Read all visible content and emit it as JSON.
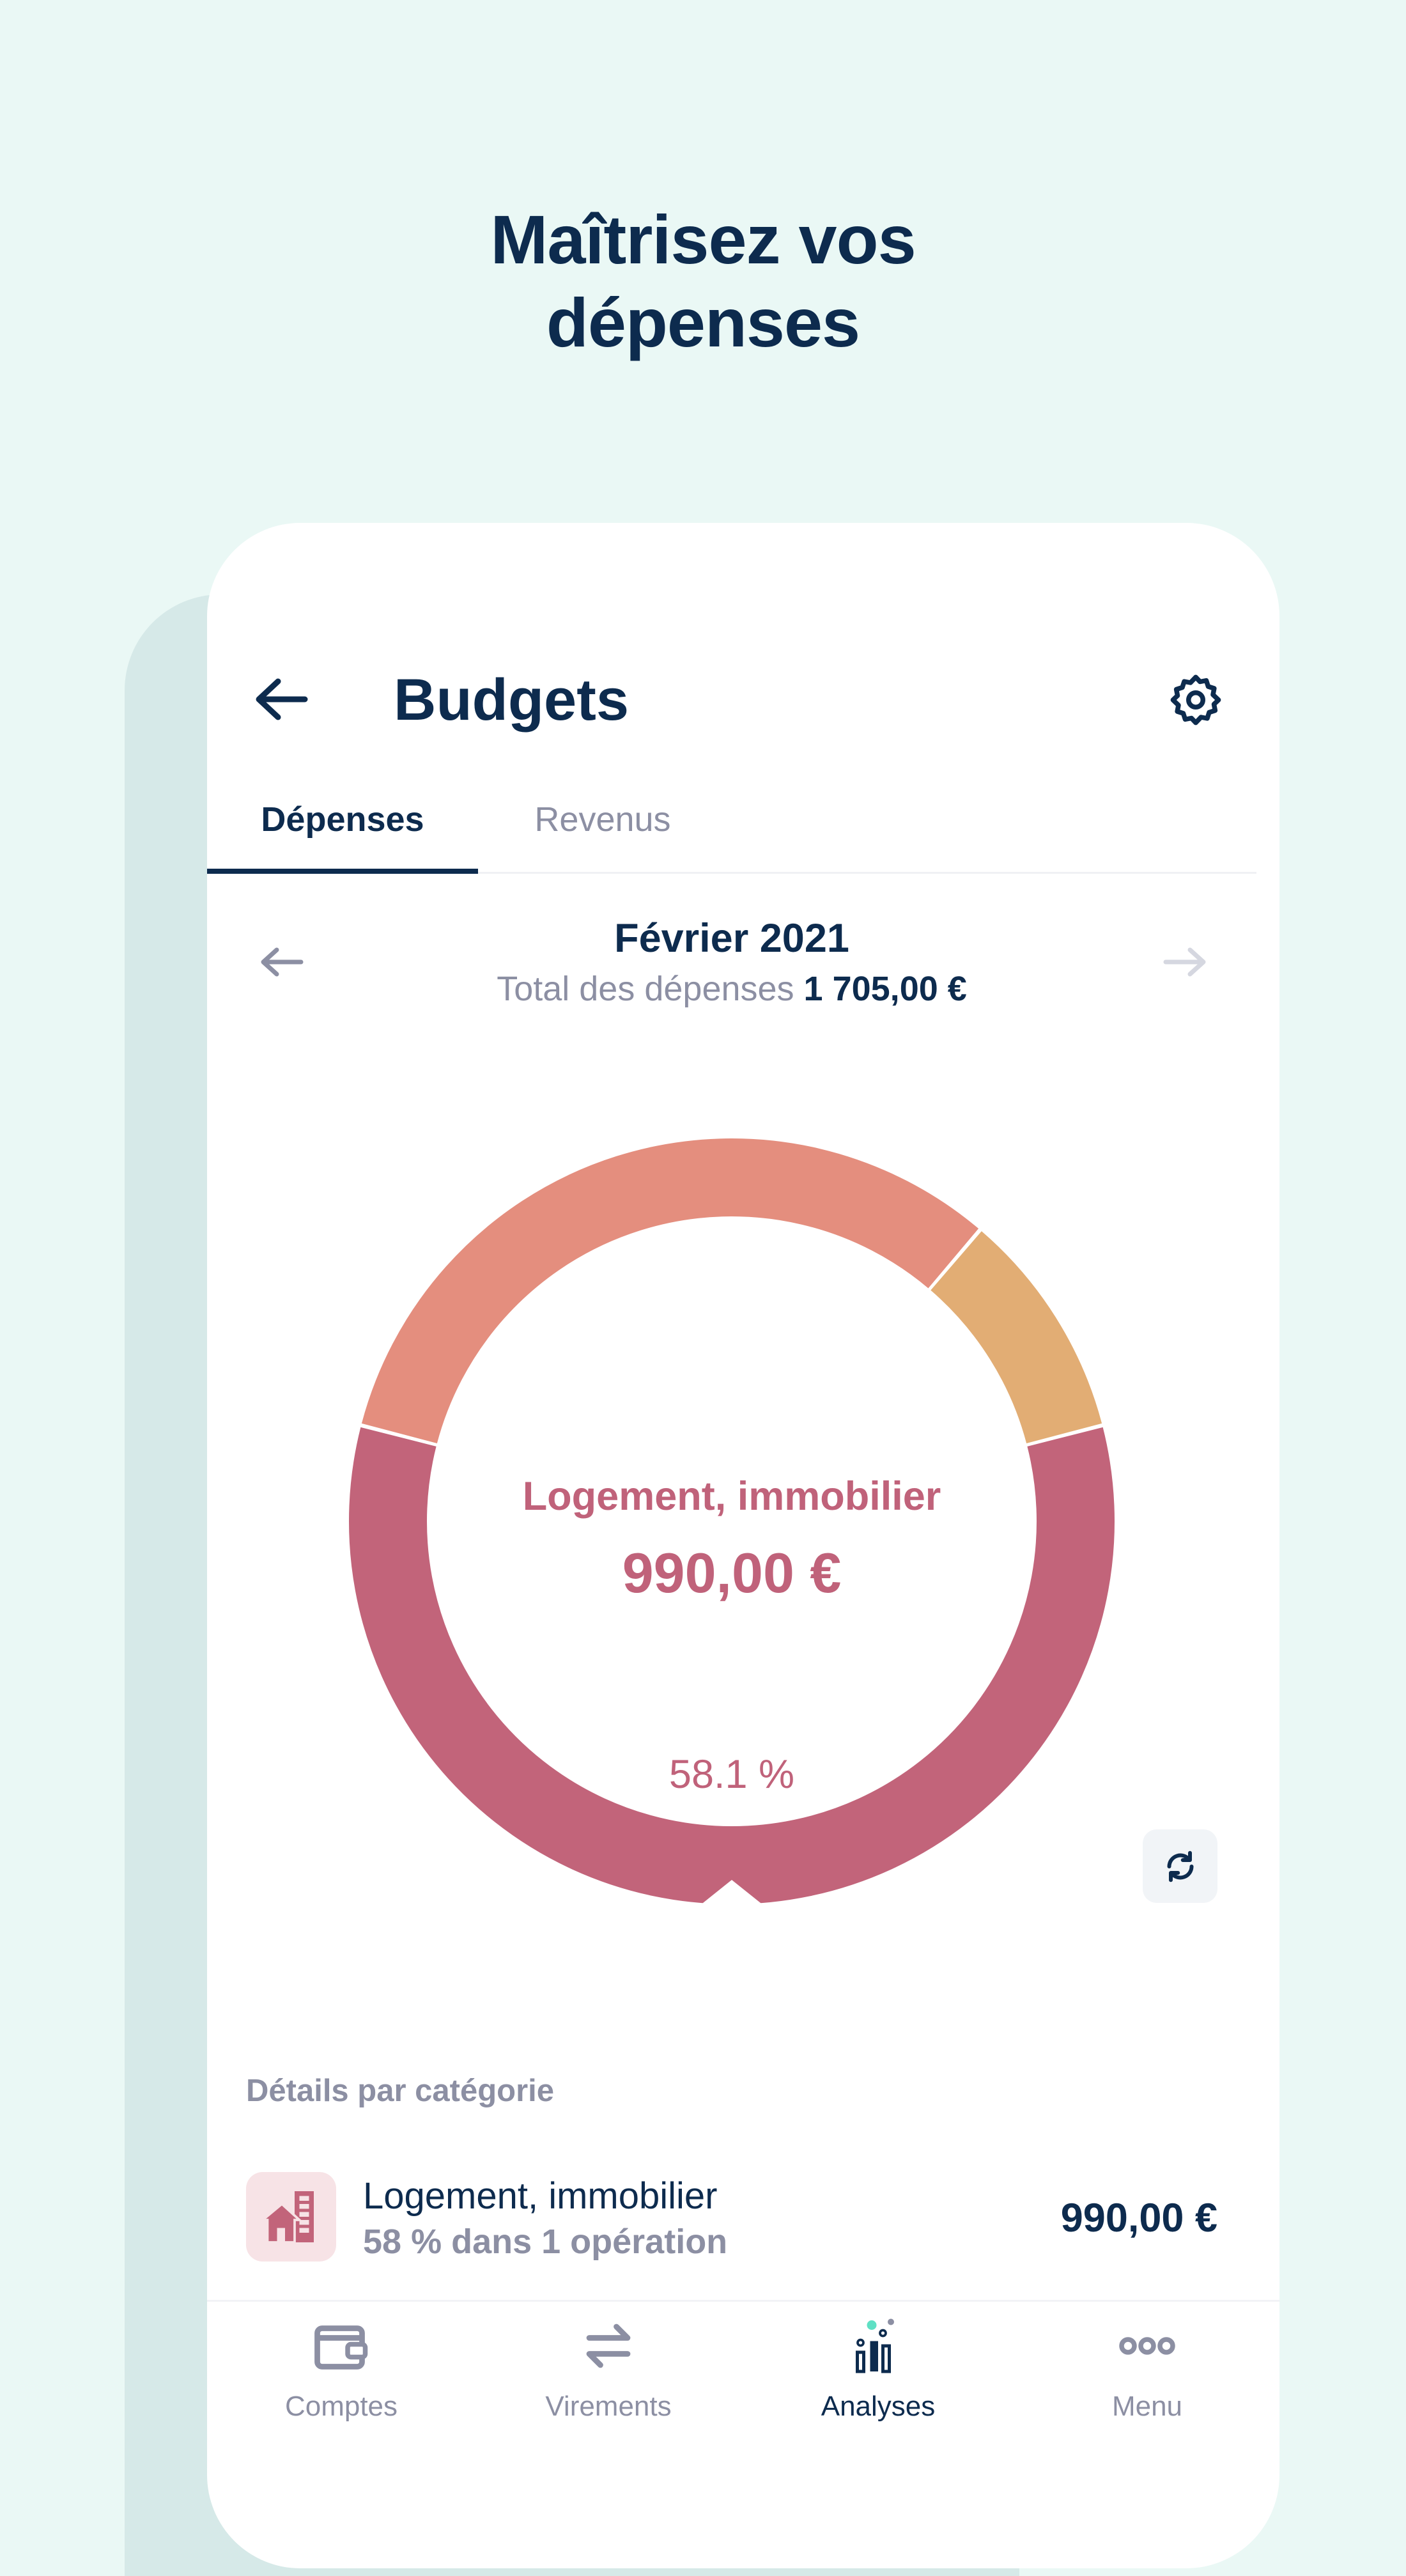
{
  "headline": {
    "line1": "Maîtrisez vos",
    "line2": "dépenses"
  },
  "header": {
    "title": "Budgets",
    "back_icon": "arrow-left-icon",
    "settings_icon": "gear-icon"
  },
  "tabs": [
    {
      "label": "Dépenses",
      "active": true
    },
    {
      "label": "Revenus",
      "active": false
    }
  ],
  "period": {
    "month": "Février 2021",
    "total_label": "Total des dépenses",
    "total_value": "1 705,00 €"
  },
  "donut": {
    "selected_category": "Logement, immobilier",
    "selected_amount": "990,00 €",
    "selected_percent": "58.1 %",
    "refresh_icon": "refresh-icon"
  },
  "chart_data": {
    "type": "pie",
    "style": "donut",
    "total": 1705,
    "slices": [
      {
        "label": "Logement, immobilier",
        "value": 990,
        "percent": 58.1,
        "color": "#c2647a"
      },
      {
        "value": 549,
        "percent": 32.2,
        "color": "#e48e7e"
      },
      {
        "value": 166,
        "percent": 9.7,
        "color": "#e2ad74"
      }
    ]
  },
  "details": {
    "heading": "Détails par catégorie",
    "items": [
      {
        "name": "Logement, immobilier",
        "sub": "58 % dans 1 opération",
        "amount": "990,00 €",
        "icon": "house-building-icon",
        "color": "#c2647a"
      }
    ]
  },
  "bottom_nav": [
    {
      "label": "Comptes",
      "icon": "wallet-icon",
      "active": false
    },
    {
      "label": "Virements",
      "icon": "transfer-arrows-icon",
      "active": false
    },
    {
      "label": "Analyses",
      "icon": "analytics-chart-icon",
      "active": true
    },
    {
      "label": "Menu",
      "icon": "more-dots-icon",
      "active": false
    }
  ],
  "colors": {
    "background": "#eaf8f5",
    "navy": "#0d2b4e",
    "accent": "#c0627a",
    "muted": "#8c8fa3"
  }
}
